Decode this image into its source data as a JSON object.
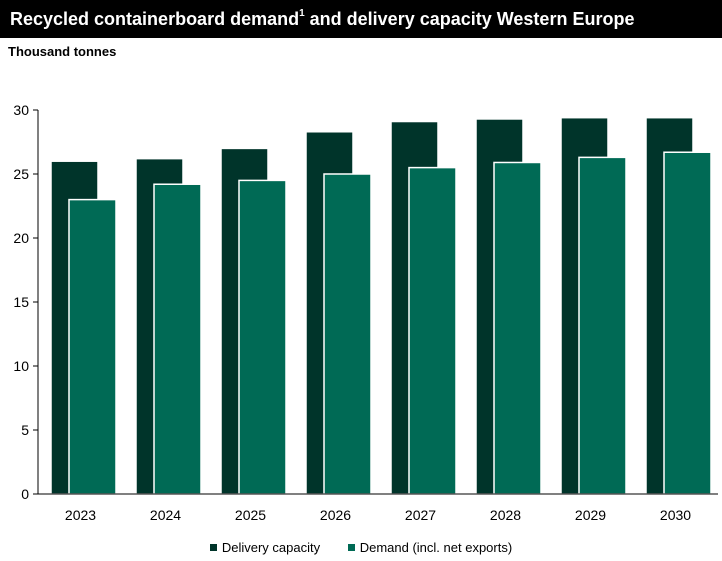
{
  "header": {
    "title_main": "Recycled containerboard demand",
    "title_sup": "1",
    "title_rest": " and delivery capacity Western Europe",
    "unit": "Thousand tonnes"
  },
  "colors": {
    "delivery": "#00342a",
    "demand": "#006a55",
    "title_bg": "#000000"
  },
  "chart_data": {
    "type": "bar",
    "categories": [
      "2023",
      "2024",
      "2025",
      "2026",
      "2027",
      "2028",
      "2029",
      "2030"
    ],
    "series": [
      {
        "name": "Delivery capacity",
        "values": [
          26.0,
          26.2,
          27.0,
          28.3,
          29.1,
          29.3,
          29.4,
          29.4
        ]
      },
      {
        "name": "Demand (incl. net exports)",
        "values": [
          23.0,
          24.2,
          24.5,
          25.0,
          25.5,
          25.9,
          26.3,
          26.7
        ]
      }
    ],
    "ylim": [
      0,
      30
    ],
    "yticks": [
      "0",
      "5",
      "10",
      "15",
      "20",
      "25",
      "30"
    ],
    "grid": false,
    "legend_position": "bottom"
  }
}
